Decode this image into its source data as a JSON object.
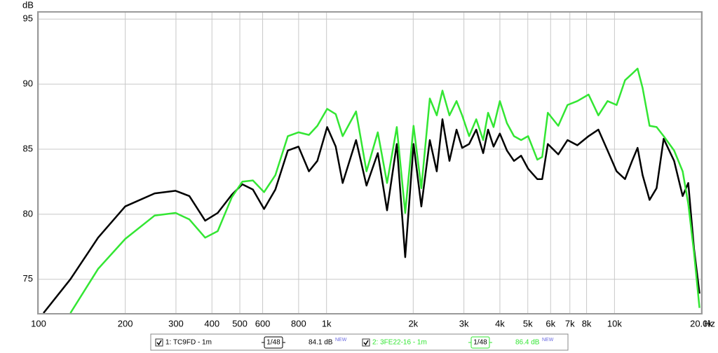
{
  "chart_data": {
    "type": "line",
    "x_label": "Hz",
    "y_label": "dB",
    "xscale": "log",
    "grid": true,
    "xlim": [
      100,
      20000
    ],
    "ylim": [
      72.4,
      95.5
    ],
    "xticks": [
      100,
      200,
      300,
      400,
      500,
      600,
      800,
      {
        "value": 1000,
        "label": "1k"
      },
      {
        "value": 2000,
        "label": "2k"
      },
      {
        "value": 3000,
        "label": "3k"
      },
      {
        "value": 4000,
        "label": "4k"
      },
      {
        "value": 5000,
        "label": "5k"
      },
      {
        "value": 6000,
        "label": "6k"
      },
      {
        "value": 7000,
        "label": "7k"
      },
      {
        "value": 8000,
        "label": "8k"
      },
      {
        "value": 10000,
        "label": "10k"
      },
      {
        "value": 20000,
        "label": "20.0k"
      }
    ],
    "yticks": [
      75,
      80,
      85,
      90,
      95
    ],
    "x": [
      104,
      129,
      161,
      200,
      253,
      299,
      334,
      379,
      419,
      469,
      510,
      555,
      607,
      664,
      734,
      799,
      869,
      929,
      1005,
      1076,
      1138,
      1266,
      1377,
      1507,
      1622,
      1754,
      1876,
      2006,
      2134,
      2284,
      2415,
      2526,
      2673,
      2828,
      2958,
      3128,
      3311,
      3499,
      3639,
      3802,
      4000,
      4233,
      4477,
      4740,
      5012,
      5395,
      5610,
      5867,
      6380,
      6870,
      7430,
      8128,
      8790,
      9460,
      10170,
      10880,
      11510,
      12030,
      12520,
      13240,
      14000,
      14820,
      16110,
      17250,
      18040,
      18880,
      19730
    ],
    "series": [
      {
        "name": "1: TC9FD - 1m",
        "color": "#000000",
        "smoothing": "1/48",
        "level": "84.1 dB",
        "level_tag": "NEW",
        "values": [
          72.4,
          75.0,
          78.2,
          80.6,
          81.6,
          81.8,
          81.4,
          79.5,
          80.1,
          81.5,
          82.3,
          81.9,
          80.4,
          81.9,
          84.9,
          85.2,
          83.3,
          84.1,
          86.7,
          85.2,
          82.4,
          85.7,
          82.2,
          84.7,
          80.3,
          85.4,
          76.7,
          85.4,
          80.6,
          85.7,
          83.3,
          87.3,
          84.1,
          86.5,
          85.1,
          85.4,
          86.5,
          84.7,
          86.5,
          85.2,
          86.2,
          84.9,
          84.1,
          84.5,
          83.5,
          82.7,
          82.7,
          85.4,
          84.6,
          85.7,
          85.3,
          86.0,
          86.5,
          84.9,
          83.3,
          82.7,
          84.1,
          85.1,
          83.0,
          81.1,
          82.0,
          85.8,
          84.1,
          81.4,
          82.4,
          77.4,
          73.9
        ]
      },
      {
        "name": "2: 3FE22-16 - 1m",
        "color": "#33e633",
        "smoothing": "1/48",
        "level": "86.4 dB",
        "level_tag": "NEW",
        "values": [
          null,
          72.4,
          75.8,
          78.1,
          79.9,
          80.1,
          79.6,
          78.2,
          78.7,
          81.3,
          82.5,
          82.6,
          81.7,
          83.0,
          86.0,
          86.3,
          86.1,
          86.8,
          88.1,
          87.7,
          86.0,
          87.9,
          83.3,
          86.3,
          82.4,
          86.7,
          80.1,
          86.8,
          82.0,
          88.9,
          87.6,
          89.5,
          87.6,
          88.7,
          87.6,
          86.0,
          87.3,
          85.7,
          87.8,
          86.7,
          88.7,
          87.0,
          86.0,
          85.7,
          86.0,
          84.2,
          84.4,
          87.8,
          86.8,
          88.4,
          88.7,
          89.2,
          87.6,
          88.7,
          88.4,
          90.3,
          90.8,
          91.2,
          89.7,
          86.8,
          86.7,
          86.0,
          84.9,
          83.3,
          80.8,
          77.1,
          72.8
        ]
      }
    ]
  }
}
